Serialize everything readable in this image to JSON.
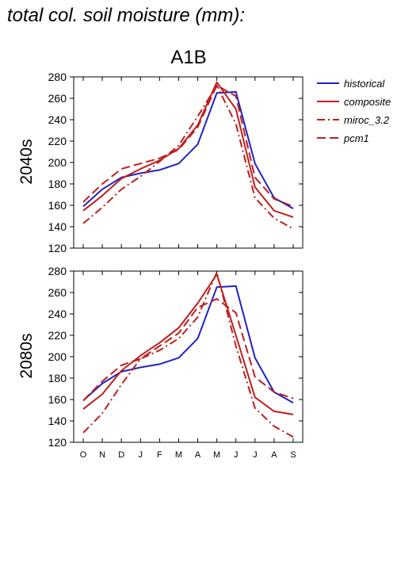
{
  "page_title": "total col. soil moisture (mm):",
  "chart_data": [
    {
      "type": "line",
      "title": "A1B",
      "ylabel": "2040s",
      "xlabel": "",
      "x": [
        "O",
        "N",
        "D",
        "J",
        "F",
        "M",
        "A",
        "M",
        "J",
        "J",
        "A",
        "S"
      ],
      "ylim": [
        120,
        280
      ],
      "yticks": [
        120,
        140,
        160,
        180,
        200,
        220,
        240,
        260,
        280
      ],
      "grid": false,
      "legend_position": "right",
      "series": [
        {
          "name": "historical",
          "color": "#1f22c4",
          "dash": "solid",
          "values": [
            159,
            175,
            186,
            190,
            193,
            199,
            217,
            265,
            266,
            199,
            167,
            157
          ]
        },
        {
          "name": "composite",
          "color": "#c01e1e",
          "dash": "solid",
          "values": [
            155,
            169,
            185,
            194,
            202,
            213,
            235,
            275,
            250,
            177,
            155,
            149
          ]
        },
        {
          "name": "miroc_3.2",
          "color": "#c01e1e",
          "dash": "dashdot",
          "values": [
            143,
            158,
            175,
            187,
            201,
            216,
            243,
            272,
            236,
            167,
            148,
            138
          ]
        },
        {
          "name": "pcm1",
          "color": "#c01e1e",
          "dash": "dash",
          "values": [
            163,
            180,
            194,
            199,
            204,
            212,
            233,
            272,
            262,
            186,
            166,
            159
          ]
        }
      ]
    },
    {
      "type": "line",
      "title": "",
      "ylabel": "2080s",
      "xlabel": "",
      "x": [
        "O",
        "N",
        "D",
        "J",
        "F",
        "M",
        "A",
        "M",
        "J",
        "J",
        "A",
        "S"
      ],
      "xtick_labels": [
        "O",
        "N",
        "D",
        "J",
        "F",
        "M",
        "A",
        "M",
        "J",
        "J",
        "A",
        "S"
      ],
      "ylim": [
        120,
        280
      ],
      "yticks": [
        120,
        140,
        160,
        180,
        200,
        220,
        240,
        260,
        280
      ],
      "grid": false,
      "series": [
        {
          "name": "historical",
          "color": "#1f22c4",
          "dash": "solid",
          "values": [
            159,
            175,
            186,
            190,
            193,
            199,
            217,
            265,
            266,
            199,
            167,
            157
          ]
        },
        {
          "name": "composite",
          "color": "#c01e1e",
          "dash": "solid",
          "values": [
            151,
            165,
            187,
            201,
            213,
            227,
            250,
            277,
            220,
            162,
            149,
            146
          ]
        },
        {
          "name": "miroc_3.2",
          "color": "#c01e1e",
          "dash": "dashdot",
          "values": [
            129,
            147,
            174,
            198,
            206,
            217,
            237,
            279,
            210,
            152,
            135,
            125
          ]
        },
        {
          "name": "pcm1",
          "color": "#c01e1e",
          "dash": "dash",
          "values": [
            159,
            177,
            192,
            198,
            210,
            222,
            246,
            254,
            241,
            181,
            167,
            161
          ]
        }
      ]
    }
  ]
}
